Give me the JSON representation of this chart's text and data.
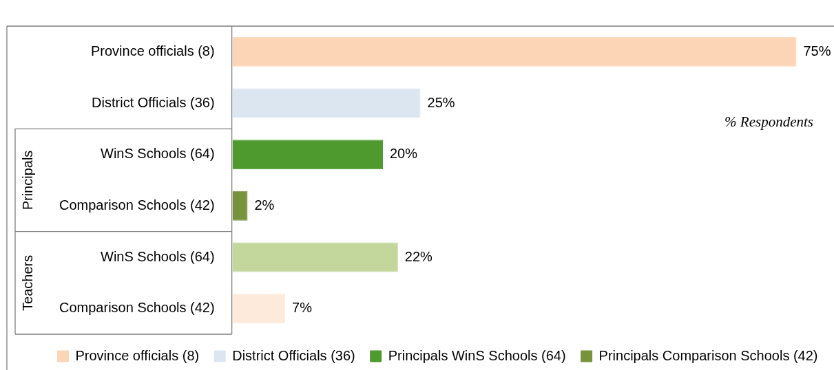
{
  "chart_data": {
    "type": "bar",
    "orientation": "horizontal",
    "xlabel": "% Respondents",
    "categories": [
      "Province officials (8)",
      "District Officials (36)",
      "WinS Schools (64)",
      "Comparison Schools (42)",
      "WinS Schools (64)",
      "Comparison Schools (42)"
    ],
    "series": [
      {
        "name": "Province officials (8)",
        "color": "#fbd5b5",
        "values": [
          75,
          null,
          null,
          null,
          null,
          null
        ],
        "value_labels": [
          "75%",
          null,
          null,
          null,
          null,
          null
        ]
      },
      {
        "name": "District Officials (36)",
        "color": "#dce6f1",
        "values": [
          null,
          25,
          null,
          null,
          null,
          null
        ],
        "value_labels": [
          null,
          "25%",
          null,
          null,
          null,
          null
        ]
      },
      {
        "name": "Principals WinS Schools (64)",
        "color": "#4e9a2e",
        "values": [
          null,
          null,
          20,
          null,
          null,
          null
        ],
        "value_labels": [
          null,
          null,
          "20%",
          null,
          null,
          null
        ]
      },
      {
        "name": "Principals Comparison Schools (42)",
        "color": "#77933c",
        "values": [
          null,
          null,
          null,
          2,
          null,
          null
        ],
        "value_labels": [
          null,
          null,
          null,
          "2%",
          null,
          null
        ]
      },
      {
        "color": "#c3d69b",
        "values": [
          null,
          null,
          null,
          null,
          22,
          null
        ],
        "value_labels": [
          null,
          null,
          null,
          null,
          "22%",
          null
        ]
      },
      {
        "color": "#fdeada",
        "values": [
          null,
          null,
          null,
          null,
          null,
          7
        ],
        "value_labels": [
          null,
          null,
          null,
          null,
          null,
          "7%"
        ]
      }
    ],
    "annotations": [
      "Principals",
      "Teachers"
    ],
    "xlim": [
      0,
      80
    ],
    "tick_labels": "y",
    "grid": false,
    "legend": "bottom"
  }
}
